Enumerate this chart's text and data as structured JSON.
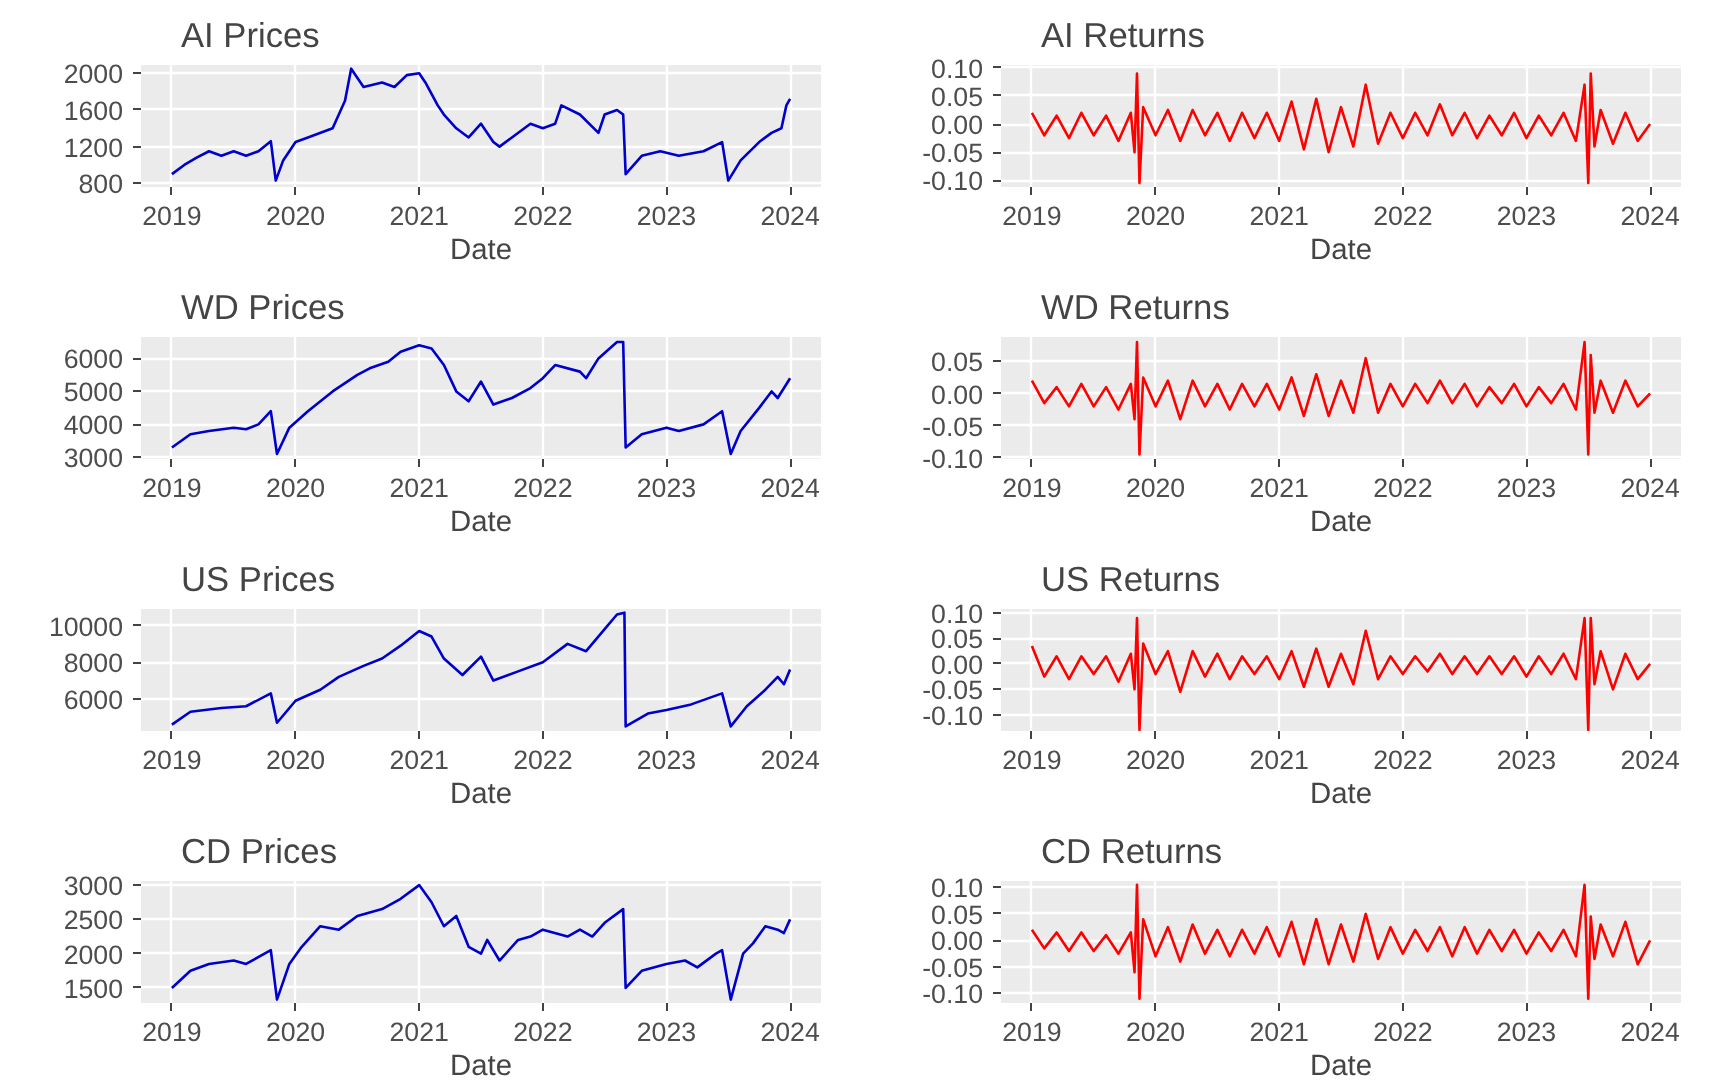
{
  "chart_data": [
    {
      "type": "line",
      "title": "AI Prices",
      "xlabel": "Date",
      "xlim": [
        2018.75,
        2024.25
      ],
      "xticks": [
        2019,
        2020,
        2021,
        2022,
        2023,
        2024
      ],
      "ylim": [
        760,
        2090
      ],
      "yticks": [
        800,
        1200,
        1600,
        2000
      ],
      "grid": true,
      "x": [
        2019.0,
        2019.1,
        2019.2,
        2019.3,
        2019.4,
        2019.5,
        2019.6,
        2019.7,
        2019.8,
        2019.84,
        2019.9,
        2020.0,
        2020.1,
        2020.3,
        2020.4,
        2020.45,
        2020.55,
        2020.7,
        2020.8,
        2020.9,
        2021.0,
        2021.05,
        2021.15,
        2021.2,
        2021.3,
        2021.4,
        2021.5,
        2021.6,
        2021.65,
        2021.75,
        2021.9,
        2022.0,
        2022.1,
        2022.15,
        2022.3,
        2022.45,
        2022.5,
        2022.6,
        2022.65,
        2022.67,
        2022.8,
        2022.95,
        2023.1,
        2023.3,
        2023.45,
        2023.5,
        2023.6,
        2023.75,
        2023.85,
        2023.93,
        2023.97,
        2024.0
      ],
      "series": [
        {
          "color": "#0000cc",
          "values": [
            900,
            1000,
            1080,
            1150,
            1100,
            1150,
            1100,
            1150,
            1260,
            830,
            1050,
            1250,
            1300,
            1400,
            1700,
            2050,
            1850,
            1900,
            1850,
            1980,
            2000,
            1900,
            1650,
            1550,
            1400,
            1300,
            1450,
            1250,
            1200,
            1300,
            1450,
            1400,
            1450,
            1650,
            1550,
            1350,
            1550,
            1600,
            1550,
            900,
            1100,
            1150,
            1100,
            1150,
            1250,
            830,
            1050,
            1250,
            1350,
            1400,
            1650,
            1720
          ]
        }
      ]
    },
    {
      "type": "line",
      "title": "AI Returns",
      "xlabel": "Date",
      "xlim": [
        2018.75,
        2024.25
      ],
      "xticks": [
        2019,
        2020,
        2021,
        2022,
        2023,
        2024
      ],
      "ylim": [
        -0.112,
        0.105
      ],
      "yticks": [
        {
          "value": -0.1,
          "label": "-0.10"
        },
        {
          "value": -0.05,
          "label": "-0.05"
        },
        {
          "value": 0,
          "label": "0.00"
        },
        {
          "value": 0.05,
          "label": "0.05"
        },
        {
          "value": 0.1,
          "label": "0.10"
        }
      ],
      "grid": true,
      "x": [
        2019.0,
        2019.1,
        2019.2,
        2019.3,
        2019.4,
        2019.5,
        2019.6,
        2019.7,
        2019.8,
        2019.83,
        2019.85,
        2019.87,
        2019.9,
        2020.0,
        2020.1,
        2020.2,
        2020.3,
        2020.4,
        2020.5,
        2020.6,
        2020.7,
        2020.8,
        2020.9,
        2021.0,
        2021.1,
        2021.2,
        2021.3,
        2021.4,
        2021.5,
        2021.6,
        2021.7,
        2021.8,
        2021.9,
        2022.0,
        2022.1,
        2022.2,
        2022.3,
        2022.4,
        2022.5,
        2022.6,
        2022.7,
        2022.8,
        2022.9,
        2023.0,
        2023.1,
        2023.2,
        2023.3,
        2023.4,
        2023.47,
        2023.5,
        2023.52,
        2023.55,
        2023.6,
        2023.7,
        2023.8,
        2023.9,
        2024.0
      ],
      "series": [
        {
          "color": "#ff0000",
          "values": [
            0.02,
            -0.02,
            0.015,
            -0.025,
            0.02,
            -0.02,
            0.015,
            -0.03,
            0.02,
            -0.05,
            0.09,
            -0.105,
            0.03,
            -0.02,
            0.025,
            -0.03,
            0.025,
            -0.02,
            0.02,
            -0.03,
            0.02,
            -0.025,
            0.02,
            -0.03,
            0.04,
            -0.045,
            0.045,
            -0.05,
            0.03,
            -0.04,
            0.07,
            -0.035,
            0.02,
            -0.025,
            0.02,
            -0.02,
            0.035,
            -0.02,
            0.02,
            -0.025,
            0.015,
            -0.02,
            0.02,
            -0.025,
            0.015,
            -0.02,
            0.02,
            -0.03,
            0.07,
            -0.105,
            0.09,
            -0.04,
            0.025,
            -0.035,
            0.02,
            -0.03,
            0.0
          ]
        }
      ]
    },
    {
      "type": "line",
      "title": "WD Prices",
      "xlabel": "Date",
      "xlim": [
        2018.75,
        2024.25
      ],
      "xticks": [
        2019,
        2020,
        2021,
        2022,
        2023,
        2024
      ],
      "ylim": [
        2950,
        6650
      ],
      "yticks": [
        3000,
        4000,
        5000,
        6000
      ],
      "grid": true,
      "x": [
        2019.0,
        2019.15,
        2019.3,
        2019.5,
        2019.6,
        2019.7,
        2019.8,
        2019.85,
        2019.95,
        2020.1,
        2020.3,
        2020.5,
        2020.6,
        2020.75,
        2020.85,
        2021.0,
        2021.1,
        2021.2,
        2021.3,
        2021.4,
        2021.5,
        2021.6,
        2021.75,
        2021.9,
        2022.0,
        2022.1,
        2022.3,
        2022.35,
        2022.45,
        2022.6,
        2022.65,
        2022.67,
        2022.8,
        2023.0,
        2023.1,
        2023.3,
        2023.45,
        2023.52,
        2023.6,
        2023.75,
        2023.85,
        2023.9,
        2024.0
      ],
      "series": [
        {
          "color": "#0000cc",
          "values": [
            3300,
            3700,
            3800,
            3900,
            3850,
            4000,
            4400,
            3100,
            3900,
            4400,
            5000,
            5500,
            5700,
            5900,
            6200,
            6400,
            6300,
            5800,
            5000,
            4700,
            5300,
            4600,
            4800,
            5100,
            5400,
            5800,
            5600,
            5400,
            6000,
            6500,
            6500,
            3300,
            3700,
            3900,
            3800,
            4000,
            4400,
            3100,
            3800,
            4500,
            5000,
            4800,
            5400
          ]
        }
      ]
    },
    {
      "type": "line",
      "title": "WD Returns",
      "xlabel": "Date",
      "xlim": [
        2018.75,
        2024.25
      ],
      "xticks": [
        2019,
        2020,
        2021,
        2022,
        2023,
        2024
      ],
      "ylim": [
        -0.102,
        0.088
      ],
      "yticks": [
        {
          "value": -0.1,
          "label": "-0.10"
        },
        {
          "value": -0.05,
          "label": "-0.05"
        },
        {
          "value": 0,
          "label": "0.00"
        },
        {
          "value": 0.05,
          "label": "0.05"
        }
      ],
      "grid": true,
      "x": [
        2019.0,
        2019.1,
        2019.2,
        2019.3,
        2019.4,
        2019.5,
        2019.6,
        2019.7,
        2019.8,
        2019.83,
        2019.85,
        2019.87,
        2019.9,
        2020.0,
        2020.1,
        2020.2,
        2020.3,
        2020.4,
        2020.5,
        2020.6,
        2020.7,
        2020.8,
        2020.9,
        2021.0,
        2021.1,
        2021.2,
        2021.3,
        2021.4,
        2021.5,
        2021.6,
        2021.7,
        2021.8,
        2021.9,
        2022.0,
        2022.1,
        2022.2,
        2022.3,
        2022.4,
        2022.5,
        2022.6,
        2022.7,
        2022.8,
        2022.9,
        2023.0,
        2023.1,
        2023.2,
        2023.3,
        2023.4,
        2023.47,
        2023.5,
        2023.52,
        2023.55,
        2023.6,
        2023.7,
        2023.8,
        2023.9,
        2024.0
      ],
      "series": [
        {
          "color": "#ff0000",
          "values": [
            0.02,
            -0.015,
            0.01,
            -0.02,
            0.015,
            -0.02,
            0.01,
            -0.025,
            0.015,
            -0.04,
            0.08,
            -0.095,
            0.025,
            -0.02,
            0.02,
            -0.04,
            0.02,
            -0.02,
            0.015,
            -0.025,
            0.015,
            -0.02,
            0.015,
            -0.025,
            0.025,
            -0.035,
            0.03,
            -0.035,
            0.02,
            -0.03,
            0.055,
            -0.03,
            0.015,
            -0.02,
            0.015,
            -0.015,
            0.02,
            -0.015,
            0.015,
            -0.02,
            0.01,
            -0.015,
            0.015,
            -0.02,
            0.01,
            -0.015,
            0.015,
            -0.025,
            0.08,
            -0.095,
            0.06,
            -0.03,
            0.02,
            -0.03,
            0.02,
            -0.02,
            0.0
          ]
        }
      ]
    },
    {
      "type": "line",
      "title": "US Prices",
      "xlabel": "Date",
      "xlim": [
        2018.75,
        2024.25
      ],
      "xticks": [
        2019,
        2020,
        2021,
        2022,
        2023,
        2024
      ],
      "ylim": [
        4250,
        10900
      ],
      "yticks": [
        6000,
        8000,
        10000
      ],
      "grid": true,
      "x": [
        2019.0,
        2019.15,
        2019.4,
        2019.6,
        2019.8,
        2019.85,
        2020.0,
        2020.2,
        2020.35,
        2020.55,
        2020.7,
        2020.85,
        2021.0,
        2021.1,
        2021.2,
        2021.35,
        2021.5,
        2021.6,
        2021.8,
        2022.0,
        2022.2,
        2022.35,
        2022.5,
        2022.6,
        2022.66,
        2022.67,
        2022.85,
        2023.0,
        2023.2,
        2023.45,
        2023.52,
        2023.65,
        2023.8,
        2023.9,
        2023.95,
        2024.0
      ],
      "series": [
        {
          "color": "#0000cc",
          "values": [
            4600,
            5300,
            5500,
            5600,
            6300,
            4700,
            5900,
            6500,
            7200,
            7800,
            8200,
            8900,
            9700,
            9400,
            8200,
            7300,
            8300,
            7000,
            7500,
            8000,
            9000,
            8600,
            9800,
            10600,
            10700,
            4500,
            5200,
            5400,
            5700,
            6300,
            4500,
            5600,
            6500,
            7200,
            6800,
            7600
          ]
        }
      ]
    },
    {
      "type": "line",
      "title": "US Returns",
      "xlabel": "Date",
      "xlim": [
        2018.75,
        2024.25
      ],
      "xticks": [
        2019,
        2020,
        2021,
        2022,
        2023,
        2024
      ],
      "ylim": [
        -0.132,
        0.108
      ],
      "yticks": [
        {
          "value": -0.1,
          "label": "-0.10"
        },
        {
          "value": -0.05,
          "label": "-0.05"
        },
        {
          "value": 0,
          "label": "0.00"
        },
        {
          "value": 0.05,
          "label": "0.05"
        },
        {
          "value": 0.1,
          "label": "0.10"
        }
      ],
      "grid": true,
      "x": [
        2019.0,
        2019.1,
        2019.2,
        2019.3,
        2019.4,
        2019.5,
        2019.6,
        2019.7,
        2019.8,
        2019.83,
        2019.85,
        2019.87,
        2019.9,
        2020.0,
        2020.1,
        2020.2,
        2020.3,
        2020.4,
        2020.5,
        2020.6,
        2020.7,
        2020.8,
        2020.9,
        2021.0,
        2021.1,
        2021.2,
        2021.3,
        2021.4,
        2021.5,
        2021.6,
        2021.7,
        2021.8,
        2021.9,
        2022.0,
        2022.1,
        2022.2,
        2022.3,
        2022.4,
        2022.5,
        2022.6,
        2022.7,
        2022.8,
        2022.9,
        2023.0,
        2023.1,
        2023.2,
        2023.3,
        2023.4,
        2023.47,
        2023.5,
        2023.52,
        2023.55,
        2023.6,
        2023.7,
        2023.8,
        2023.9,
        2024.0
      ],
      "series": [
        {
          "color": "#ff0000",
          "values": [
            0.035,
            -0.025,
            0.015,
            -0.03,
            0.015,
            -0.02,
            0.015,
            -0.035,
            0.02,
            -0.05,
            0.09,
            -0.13,
            0.04,
            -0.02,
            0.025,
            -0.055,
            0.025,
            -0.025,
            0.02,
            -0.03,
            0.015,
            -0.02,
            0.015,
            -0.03,
            0.025,
            -0.045,
            0.03,
            -0.045,
            0.02,
            -0.04,
            0.065,
            -0.03,
            0.015,
            -0.02,
            0.015,
            -0.015,
            0.02,
            -0.02,
            0.015,
            -0.02,
            0.015,
            -0.02,
            0.015,
            -0.025,
            0.015,
            -0.02,
            0.02,
            -0.03,
            0.09,
            -0.13,
            0.09,
            -0.04,
            0.025,
            -0.05,
            0.02,
            -0.03,
            0.0
          ]
        }
      ]
    },
    {
      "type": "line",
      "title": "CD Prices",
      "xlabel": "Date",
      "xlim": [
        2018.75,
        2024.25
      ],
      "xticks": [
        2019,
        2020,
        2021,
        2022,
        2023,
        2024
      ],
      "ylim": [
        1280,
        3060
      ],
      "yticks": [
        1500,
        2000,
        2500,
        3000
      ],
      "grid": true,
      "x": [
        2019.0,
        2019.15,
        2019.3,
        2019.5,
        2019.6,
        2019.8,
        2019.85,
        2019.95,
        2020.05,
        2020.2,
        2020.35,
        2020.5,
        2020.7,
        2020.85,
        2021.0,
        2021.1,
        2021.2,
        2021.3,
        2021.4,
        2021.5,
        2021.55,
        2021.65,
        2021.8,
        2021.9,
        2022.0,
        2022.2,
        2022.3,
        2022.4,
        2022.5,
        2022.65,
        2022.67,
        2022.8,
        2023.0,
        2023.15,
        2023.25,
        2023.4,
        2023.45,
        2023.52,
        2023.62,
        2023.7,
        2023.8,
        2023.9,
        2023.95,
        2024.0
      ],
      "series": [
        {
          "color": "#0000cc",
          "values": [
            1500,
            1750,
            1850,
            1900,
            1850,
            2050,
            1330,
            1850,
            2100,
            2400,
            2350,
            2550,
            2650,
            2800,
            3000,
            2750,
            2400,
            2550,
            2100,
            2000,
            2200,
            1900,
            2200,
            2250,
            2350,
            2250,
            2350,
            2250,
            2450,
            2650,
            1500,
            1750,
            1850,
            1900,
            1800,
            2000,
            2050,
            1330,
            2000,
            2150,
            2400,
            2350,
            2300,
            2500
          ]
        }
      ]
    },
    {
      "type": "line",
      "title": "CD Returns",
      "xlabel": "Date",
      "xlim": [
        2018.75,
        2024.25
      ],
      "xticks": [
        2019,
        2020,
        2021,
        2022,
        2023,
        2024
      ],
      "ylim": [
        -0.118,
        0.112
      ],
      "yticks": [
        {
          "value": -0.1,
          "label": "-0.10"
        },
        {
          "value": -0.05,
          "label": "-0.05"
        },
        {
          "value": 0,
          "label": "0.00"
        },
        {
          "value": 0.05,
          "label": "0.05"
        },
        {
          "value": 0.1,
          "label": "0.10"
        }
      ],
      "grid": true,
      "x": [
        2019.0,
        2019.1,
        2019.2,
        2019.3,
        2019.4,
        2019.5,
        2019.6,
        2019.7,
        2019.8,
        2019.83,
        2019.85,
        2019.87,
        2019.9,
        2020.0,
        2020.1,
        2020.2,
        2020.3,
        2020.4,
        2020.5,
        2020.6,
        2020.7,
        2020.8,
        2020.9,
        2021.0,
        2021.1,
        2021.2,
        2021.3,
        2021.4,
        2021.5,
        2021.6,
        2021.7,
        2021.8,
        2021.9,
        2022.0,
        2022.1,
        2022.2,
        2022.3,
        2022.4,
        2022.5,
        2022.6,
        2022.7,
        2022.8,
        2022.9,
        2023.0,
        2023.1,
        2023.2,
        2023.3,
        2023.4,
        2023.47,
        2023.5,
        2023.52,
        2023.55,
        2023.6,
        2023.7,
        2023.8,
        2023.9,
        2024.0
      ],
      "series": [
        {
          "color": "#ff0000",
          "values": [
            0.02,
            -0.015,
            0.015,
            -0.02,
            0.015,
            -0.02,
            0.01,
            -0.025,
            0.015,
            -0.06,
            0.105,
            -0.11,
            0.04,
            -0.03,
            0.025,
            -0.04,
            0.03,
            -0.025,
            0.02,
            -0.03,
            0.02,
            -0.025,
            0.025,
            -0.03,
            0.035,
            -0.045,
            0.04,
            -0.045,
            0.03,
            -0.04,
            0.05,
            -0.035,
            0.025,
            -0.025,
            0.02,
            -0.02,
            0.025,
            -0.03,
            0.025,
            -0.025,
            0.02,
            -0.02,
            0.02,
            -0.025,
            0.015,
            -0.02,
            0.02,
            -0.03,
            0.105,
            -0.11,
            0.045,
            -0.035,
            0.03,
            -0.03,
            0.035,
            -0.045,
            0.0
          ]
        }
      ]
    }
  ]
}
